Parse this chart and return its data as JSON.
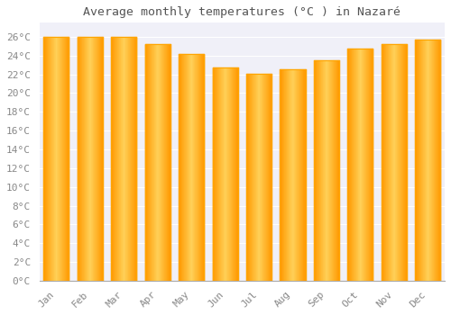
{
  "title": "Average monthly temperatures (°C ) in Nazaré",
  "months": [
    "Jan",
    "Feb",
    "Mar",
    "Apr",
    "May",
    "Jun",
    "Jul",
    "Aug",
    "Sep",
    "Oct",
    "Nov",
    "Dec"
  ],
  "values": [
    26.0,
    26.0,
    26.0,
    25.2,
    24.2,
    22.7,
    22.1,
    22.5,
    23.5,
    24.7,
    25.2,
    25.7
  ],
  "bar_color_left": "#FFA500",
  "bar_color_center": "#FFD060",
  "bar_color_right": "#FFA500",
  "background_color": "#FFFFFF",
  "plot_bg_color": "#F0F0F8",
  "grid_color": "#FFFFFF",
  "title_color": "#555555",
  "tick_color": "#888888",
  "ylabel_step": 2,
  "ylim": [
    0,
    27.5
  ],
  "ytick_max": 26,
  "bar_width": 0.75,
  "title_fontsize": 9.5,
  "tick_fontsize": 8,
  "font_family": "monospace"
}
